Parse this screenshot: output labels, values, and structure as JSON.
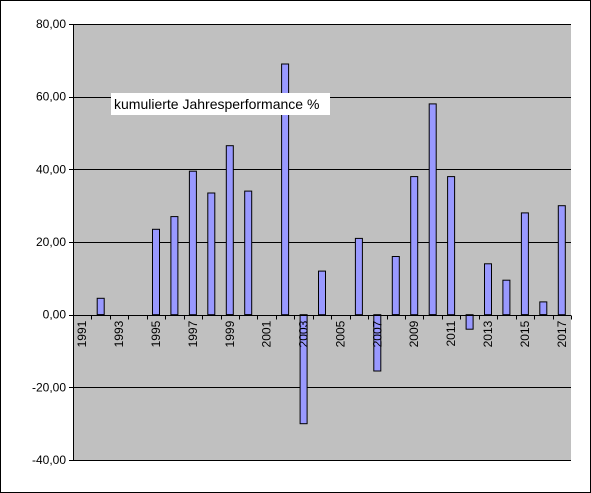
{
  "chart_data": {
    "type": "bar",
    "annotation": "kumulierte Jahresperformance %",
    "categories": [
      "1991",
      "1992",
      "1993",
      "1994",
      "1995",
      "1996",
      "1997",
      "1998",
      "1999",
      "2000",
      "2001",
      "2002",
      "2003",
      "2004",
      "2005",
      "2006",
      "2007",
      "2008",
      "2009",
      "2010",
      "2011",
      "2012",
      "2013",
      "2014",
      "2015",
      "2016",
      "2017"
    ],
    "x_tick_labels": [
      "1991",
      "1993",
      "1995",
      "1997",
      "1999",
      "2001",
      "2003",
      "2005",
      "2007",
      "2009",
      "2011",
      "2013",
      "2015",
      "2017"
    ],
    "y_tick_labels": [
      "80,00",
      "60,00",
      "40,00",
      "20,00",
      "0,00",
      "-20,00",
      "-40,00"
    ],
    "values": [
      null,
      4.5,
      null,
      null,
      23.5,
      27,
      39.5,
      33.5,
      46.5,
      34,
      null,
      69,
      -30,
      12,
      null,
      21,
      -15.5,
      16,
      38,
      58,
      38,
      -4,
      14,
      9.5,
      28,
      3.5,
      30
    ],
    "ylim": [
      -40,
      80
    ],
    "y_step": 20,
    "grid": true,
    "legend": "none",
    "colors": {
      "plot_background": "#c0c0c0",
      "bar_fill": "#9999ff",
      "bar_stroke": "#000000",
      "grid": "#000000"
    }
  }
}
